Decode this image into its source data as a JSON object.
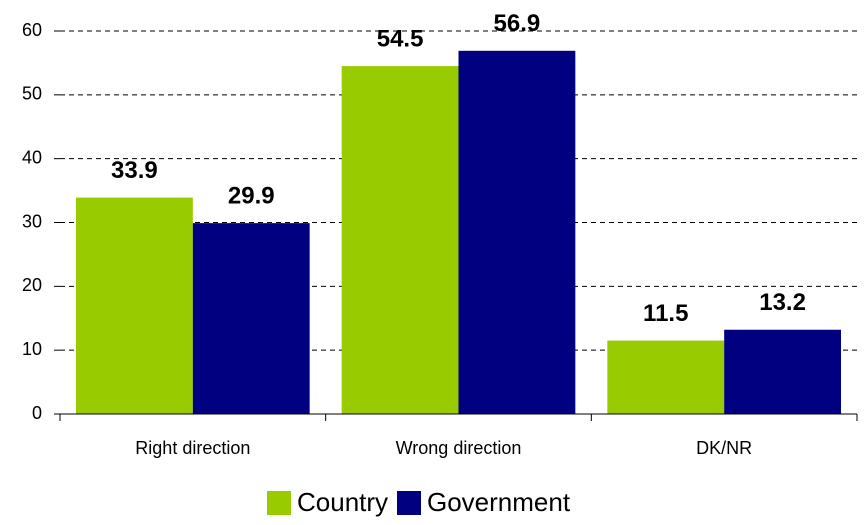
{
  "chart_data": {
    "type": "bar",
    "categories": [
      "Right direction",
      "Wrong direction",
      "DK/NR"
    ],
    "series": [
      {
        "name": "Country",
        "color": "#99cc00",
        "values": [
          33.9,
          54.5,
          11.5
        ]
      },
      {
        "name": "Government",
        "color": "#000080",
        "values": [
          29.9,
          56.9,
          13.2
        ]
      }
    ],
    "ylim": [
      0,
      60
    ],
    "yticks": [
      0,
      10,
      20,
      30,
      40,
      50,
      60
    ],
    "grid": true,
    "legend": "bottom"
  }
}
